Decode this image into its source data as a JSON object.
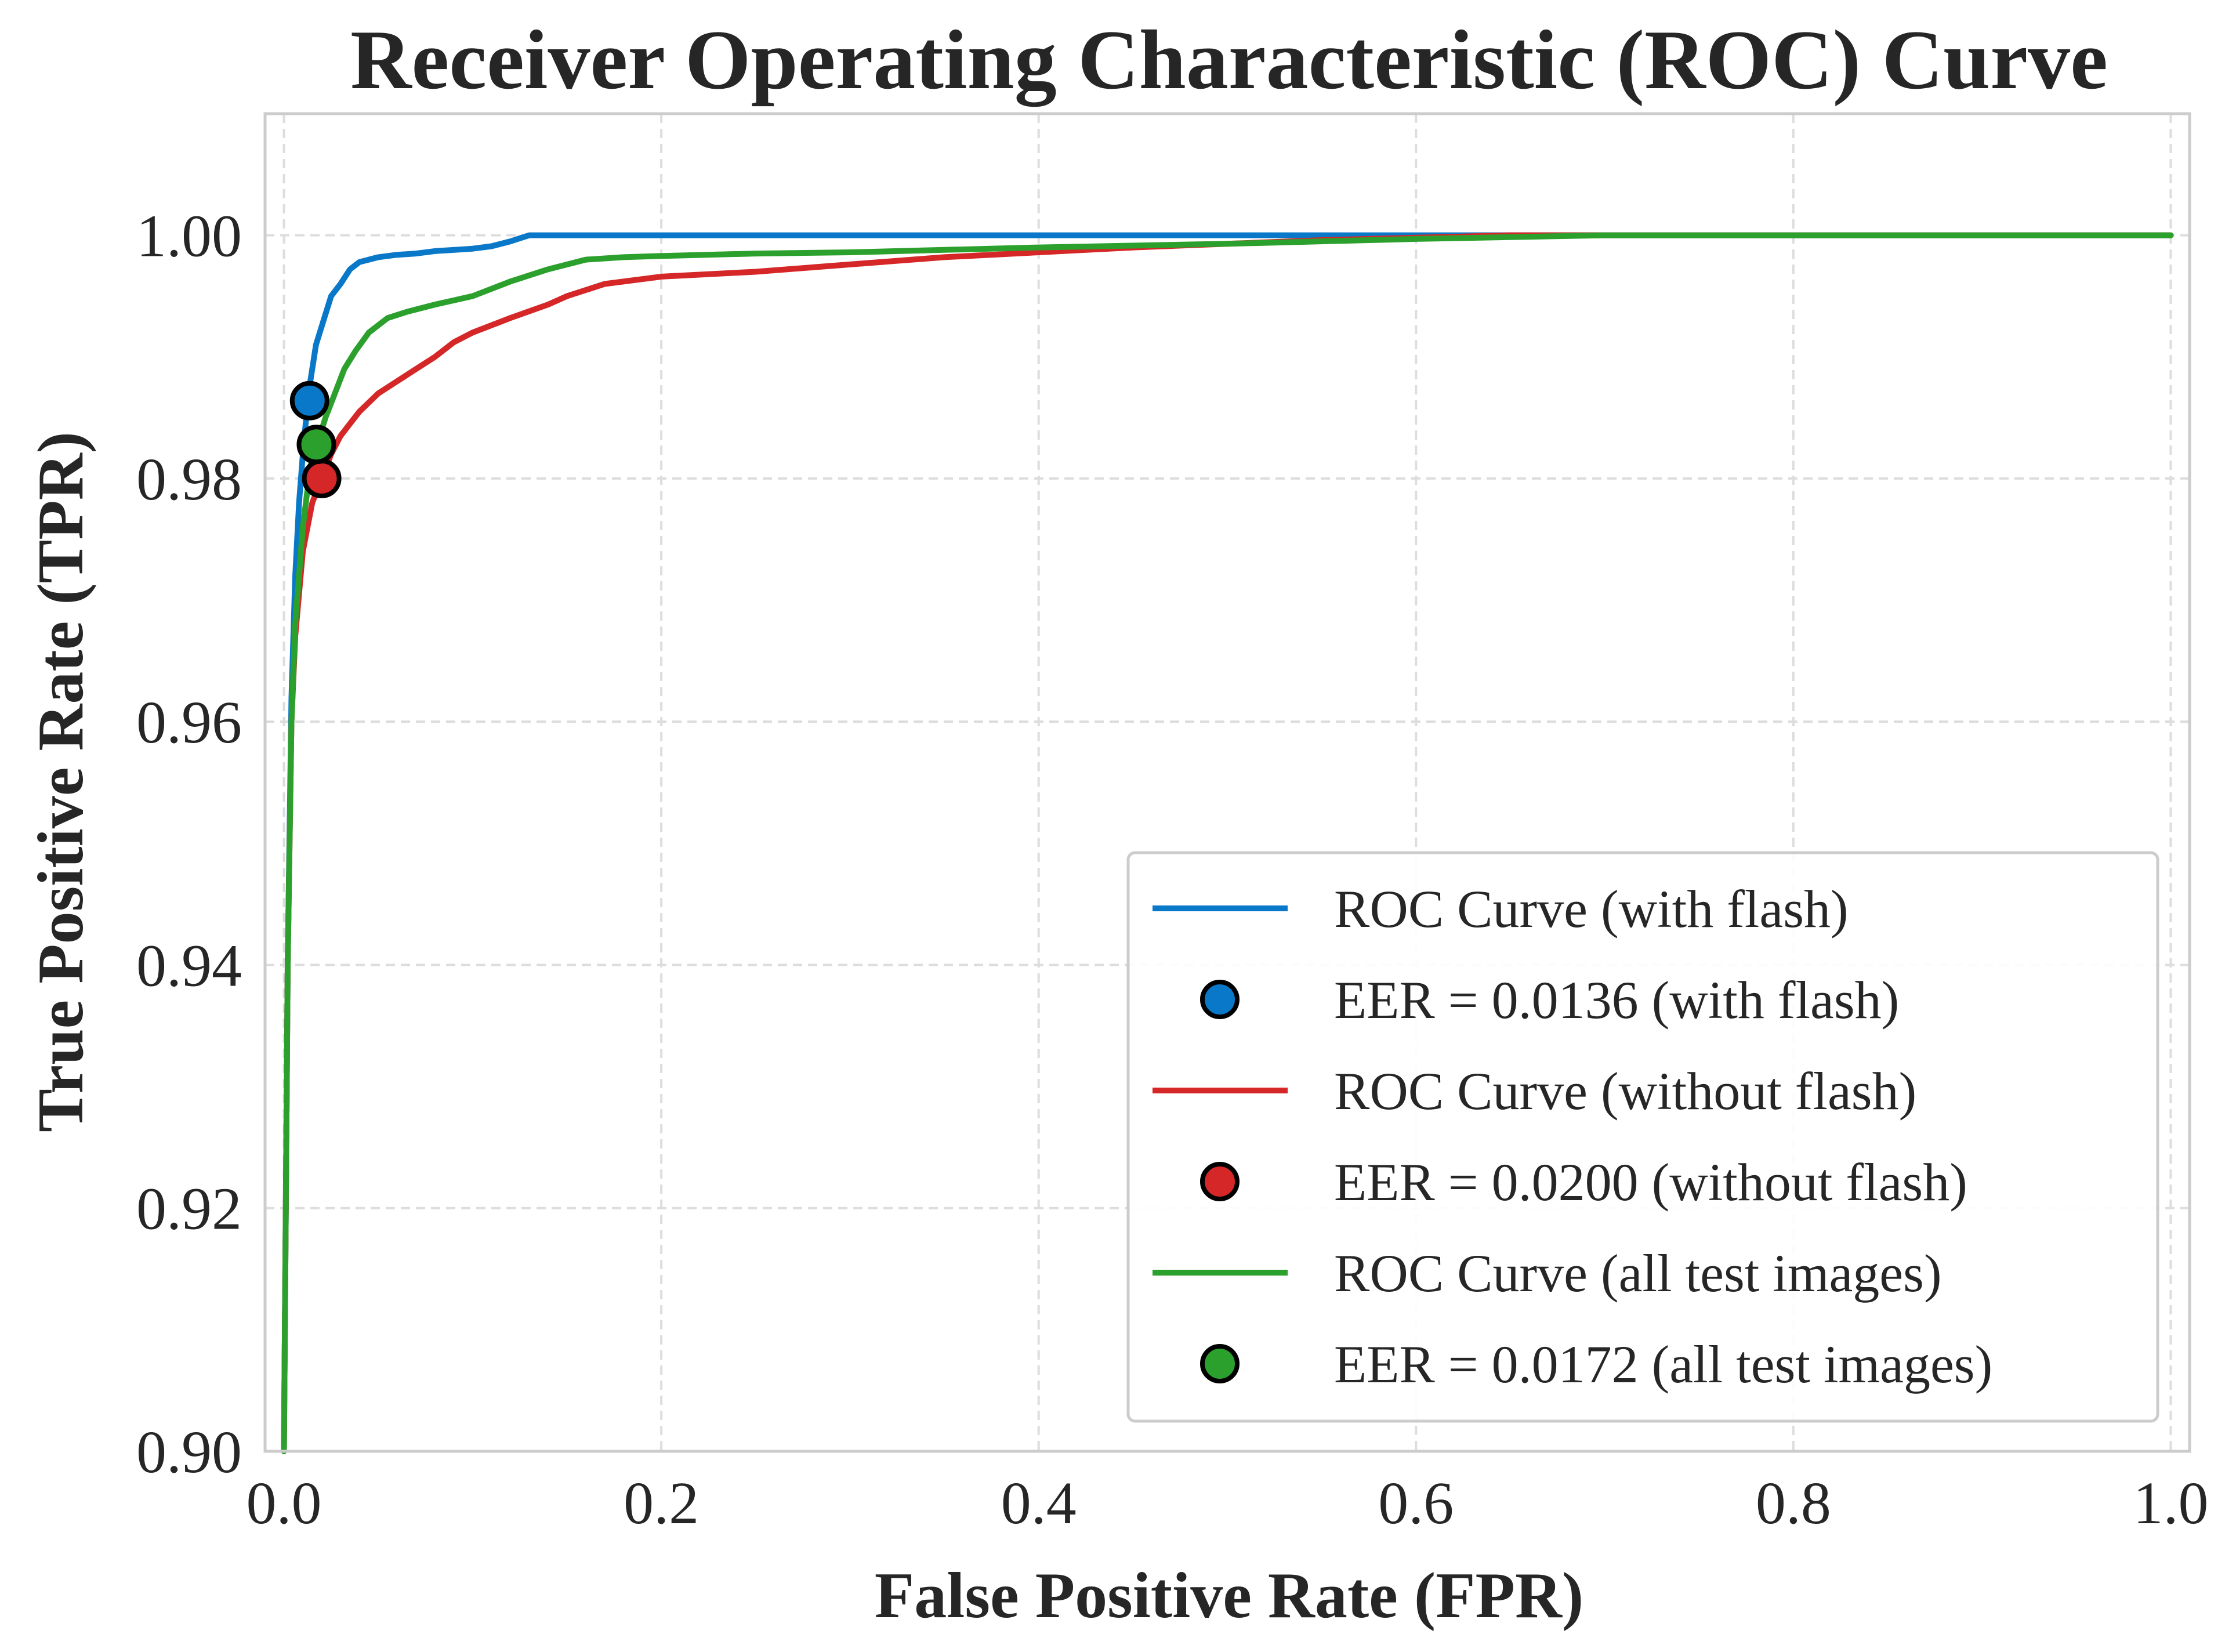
{
  "colors": {
    "with_flash": "#0a78c8",
    "without_flash": "#d62728",
    "all_test_images": "#2ca02c",
    "grid": "#dddddd",
    "frame": "#cccccc",
    "text": "#262626"
  },
  "chart_data": {
    "type": "line",
    "title": "Receiver Operating Characteristic (ROC) Curve",
    "xlabel": "False Positive Rate (FPR)",
    "ylabel": "True Positive Rate (TPR)",
    "xlim": [
      -0.01,
      1.01
    ],
    "ylim": [
      0.9,
      1.01
    ],
    "xticks": [
      0.0,
      0.2,
      0.4,
      0.6,
      0.8,
      1.0
    ],
    "xtick_labels": [
      "0.0",
      "0.2",
      "0.4",
      "0.6",
      "0.8",
      "1.0"
    ],
    "yticks": [
      0.9,
      0.92,
      0.94,
      0.96,
      0.98,
      1.0
    ],
    "ytick_labels": [
      "0.90",
      "0.92",
      "0.94",
      "0.96",
      "0.98",
      "1.00"
    ],
    "grid": true,
    "grid_style": "dashed",
    "legend_position": "lower-right",
    "series": [
      {
        "key": "with_flash",
        "name": "ROC Curve (with flash)",
        "x": [
          0.0,
          0.002,
          0.004,
          0.006,
          0.008,
          0.01,
          0.013,
          0.017,
          0.021,
          0.025,
          0.03,
          0.035,
          0.04,
          0.045,
          0.05,
          0.06,
          0.07,
          0.08,
          0.1,
          0.11,
          0.12,
          0.13,
          0.2,
          0.4,
          0.6,
          0.8,
          1.0
        ],
        "y": [
          0.9,
          0.94,
          0.962,
          0.972,
          0.978,
          0.982,
          0.987,
          0.991,
          0.993,
          0.995,
          0.996,
          0.9972,
          0.9978,
          0.998,
          0.9982,
          0.9984,
          0.9985,
          0.9987,
          0.9989,
          0.9991,
          0.9995,
          1.0,
          1.0,
          1.0,
          1.0,
          1.0,
          1.0
        ]
      },
      {
        "key": "without_flash",
        "name": "ROC Curve (without flash)",
        "x": [
          0.0,
          0.002,
          0.004,
          0.006,
          0.01,
          0.015,
          0.02,
          0.025,
          0.03,
          0.04,
          0.05,
          0.06,
          0.07,
          0.08,
          0.09,
          0.1,
          0.12,
          0.14,
          0.15,
          0.17,
          0.2,
          0.25,
          0.3,
          0.35,
          0.4,
          0.45,
          0.5,
          0.55,
          0.6,
          0.65,
          0.7,
          0.8,
          1.0
        ],
        "y": [
          0.9,
          0.94,
          0.96,
          0.967,
          0.974,
          0.978,
          0.98,
          0.982,
          0.9835,
          0.9855,
          0.987,
          0.988,
          0.989,
          0.99,
          0.9912,
          0.992,
          0.9932,
          0.9943,
          0.995,
          0.996,
          0.9966,
          0.997,
          0.9976,
          0.9982,
          0.9986,
          0.999,
          0.9993,
          0.9996,
          0.9998,
          1.0,
          1.0,
          1.0,
          1.0
        ]
      },
      {
        "key": "all_test_images",
        "name": "ROC Curve (all test images)",
        "x": [
          0.0,
          0.002,
          0.004,
          0.006,
          0.01,
          0.014,
          0.018,
          0.022,
          0.027,
          0.032,
          0.038,
          0.045,
          0.055,
          0.065,
          0.08,
          0.1,
          0.12,
          0.14,
          0.16,
          0.18,
          0.2,
          0.25,
          0.3,
          0.4,
          0.5,
          0.6,
          0.7,
          0.8,
          1.0
        ],
        "y": [
          0.9,
          0.94,
          0.96,
          0.968,
          0.976,
          0.981,
          0.983,
          0.985,
          0.987,
          0.989,
          0.9905,
          0.992,
          0.9932,
          0.9937,
          0.9943,
          0.995,
          0.9962,
          0.9972,
          0.998,
          0.9982,
          0.9983,
          0.9985,
          0.9986,
          0.999,
          0.9993,
          0.9997,
          1.0,
          1.0,
          1.0
        ]
      }
    ],
    "markers": [
      {
        "key": "with_flash",
        "name": "EER = 0.0136 (with flash)",
        "x": 0.0136,
        "y": 0.9864
      },
      {
        "key": "without_flash",
        "name": "EER = 0.0200 (without flash)",
        "x": 0.02,
        "y": 0.98
      },
      {
        "key": "all_test_images",
        "name": "EER = 0.0172 (all test images)",
        "x": 0.0172,
        "y": 0.9828
      }
    ],
    "legend": [
      {
        "type": "line",
        "key": "with_flash",
        "label": "ROC Curve (with flash)"
      },
      {
        "type": "marker",
        "key": "with_flash",
        "label": "EER = 0.0136 (with flash)"
      },
      {
        "type": "line",
        "key": "without_flash",
        "label": "ROC Curve (without flash)"
      },
      {
        "type": "marker",
        "key": "without_flash",
        "label": "EER = 0.0200 (without flash)"
      },
      {
        "type": "line",
        "key": "all_test_images",
        "label": "ROC Curve (all test images)"
      },
      {
        "type": "marker",
        "key": "all_test_images",
        "label": "EER = 0.0172 (all test images)"
      }
    ]
  }
}
